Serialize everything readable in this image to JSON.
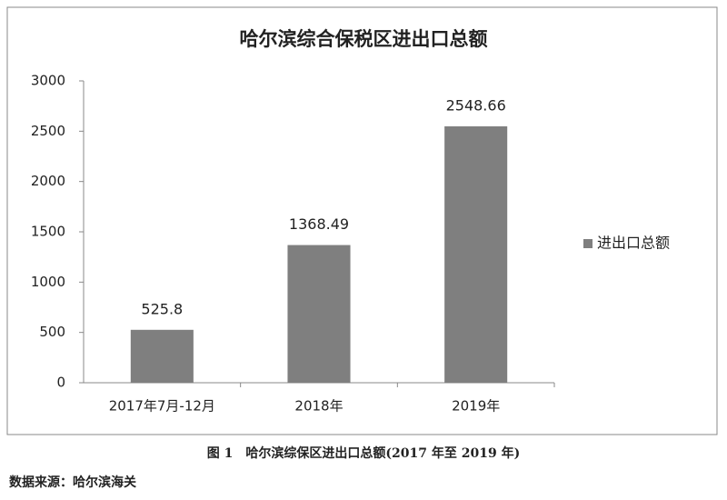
{
  "chart_data": {
    "type": "bar",
    "title": "哈尔滨综合保税区进出口总额",
    "categories": [
      "2017年7月-12月",
      "2018年",
      "2019年"
    ],
    "series": [
      {
        "name": "进出口总额",
        "color": "#7f7f7f",
        "values": [
          525.8,
          1368.49,
          2548.66
        ]
      }
    ],
    "ylim": [
      0,
      3000
    ],
    "yticks": [
      0,
      500,
      1000,
      1500,
      2000,
      2500,
      3000
    ],
    "grid": false,
    "legend": "right",
    "data_labels": true
  },
  "figure_caption": "图 1　哈尔滨综保区进出口总额(2017 年至 2019 年)",
  "source": "数据来源：哈尔滨海关"
}
